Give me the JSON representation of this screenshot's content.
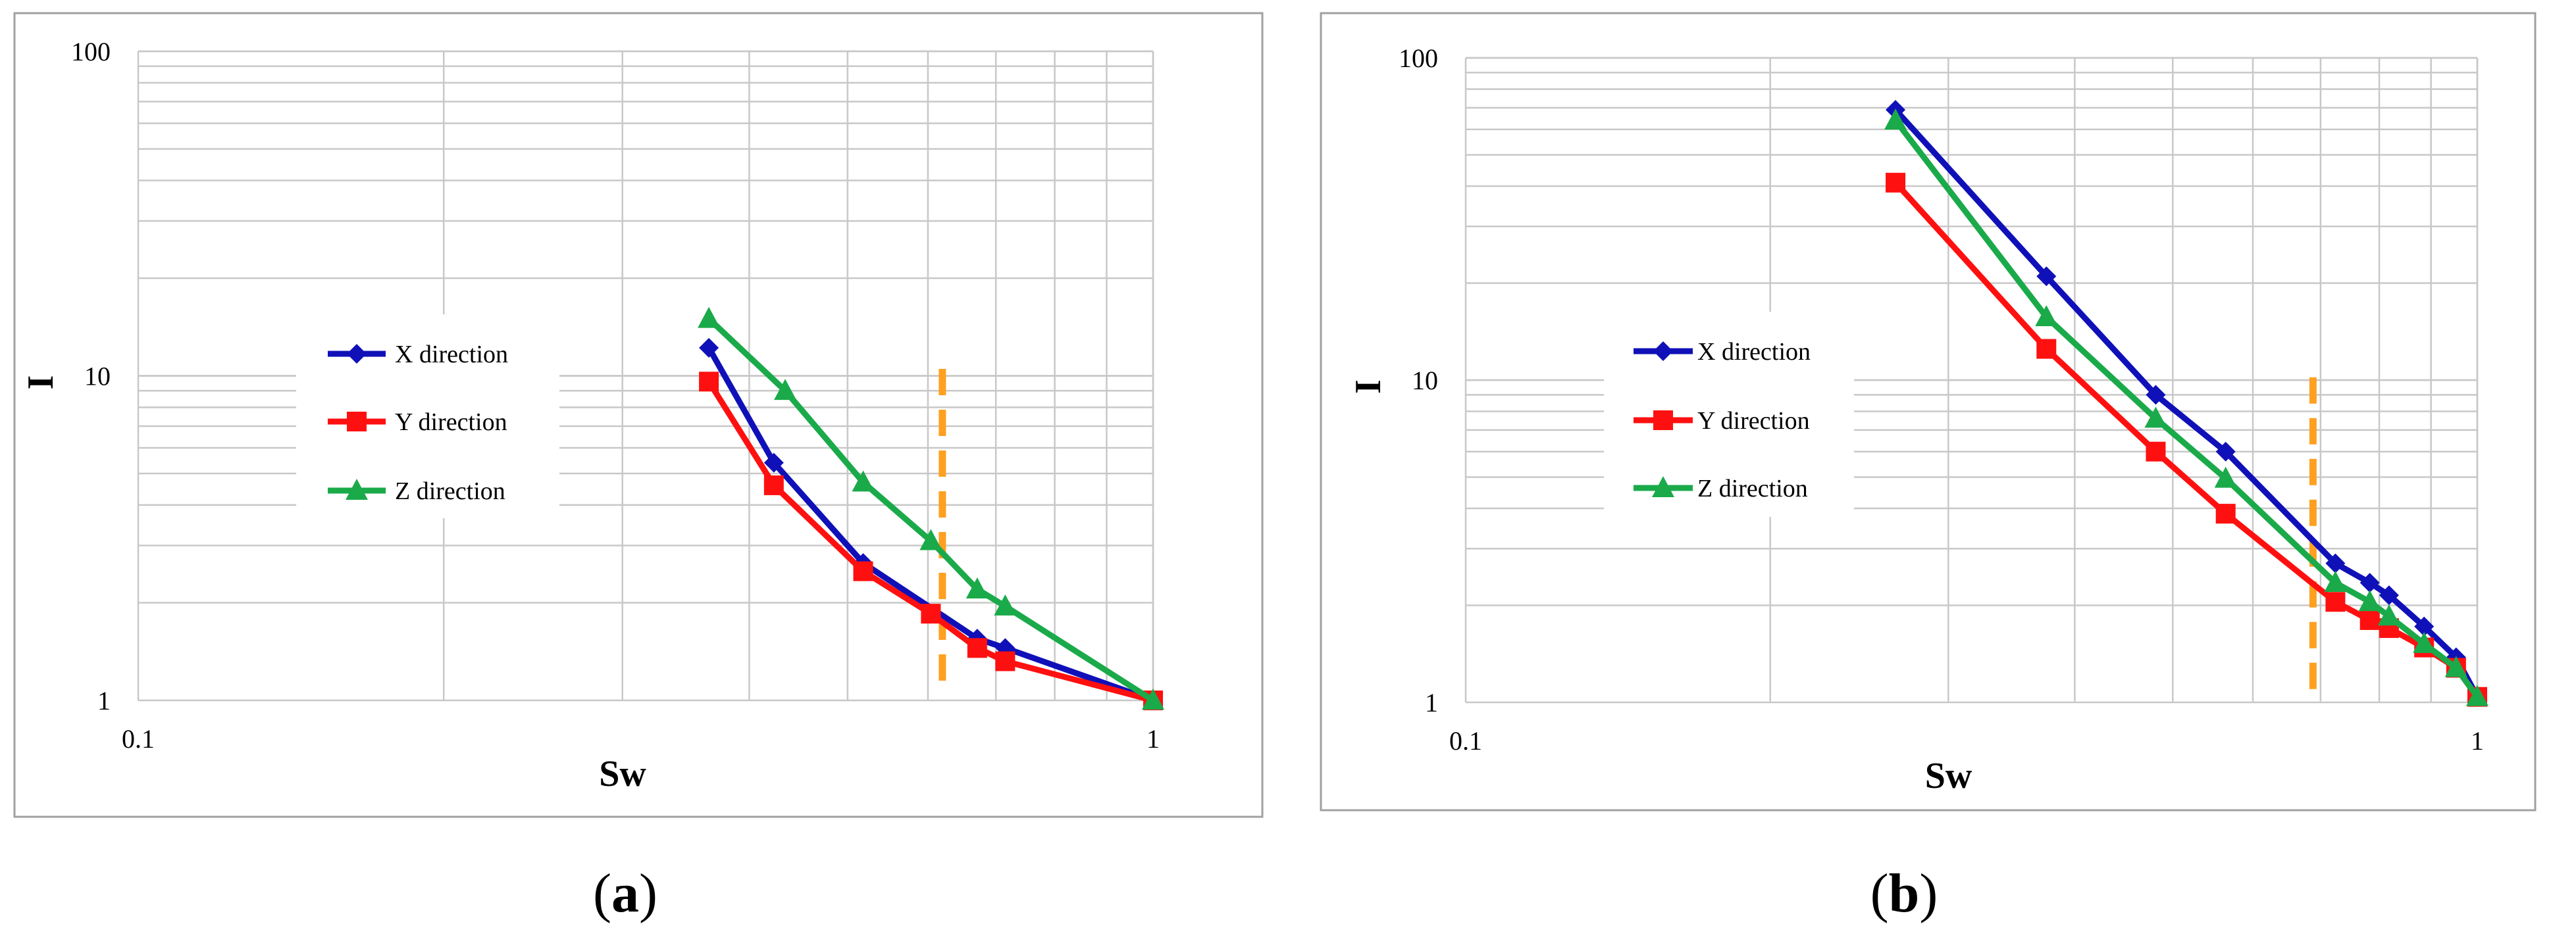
{
  "colors": {
    "x_series": "#1010b8",
    "y_series": "#ff1010",
    "z_series": "#1aaa4a",
    "cutoff_line": "#ffa020",
    "grid": "#c8c8c8",
    "frame": "#a0a0a0"
  },
  "chart_data": [
    {
      "panel_label": "a",
      "type": "line",
      "xscale": "log",
      "yscale": "log",
      "xlim": [
        0.1,
        1
      ],
      "ylim": [
        1,
        100
      ],
      "xlabel": "Sw",
      "ylabel": "I",
      "xticks": [
        "0.1",
        "1"
      ],
      "yticks": [
        "1",
        "10",
        "100"
      ],
      "grid": true,
      "legend_position": "center-left",
      "series": [
        {
          "name": "X direction",
          "marker": "diamond",
          "color": "#1010b8",
          "x": [
            0.365,
            0.423,
            0.518,
            0.671,
            0.715,
            1.0
          ],
          "y": [
            12.2,
            5.4,
            2.65,
            1.55,
            1.45,
            1.0
          ]
        },
        {
          "name": "Y direction",
          "marker": "square",
          "color": "#ff1010",
          "x": [
            0.365,
            0.423,
            0.518,
            0.604,
            0.671,
            0.715,
            1.0
          ],
          "y": [
            9.6,
            4.6,
            2.5,
            1.85,
            1.45,
            1.32,
            1.0
          ]
        },
        {
          "name": "Z direction",
          "marker": "triangle",
          "color": "#1aaa4a",
          "x": [
            0.365,
            0.434,
            0.518,
            0.604,
            0.671,
            0.715,
            1.0
          ],
          "y": [
            15.0,
            9.0,
            4.7,
            3.1,
            2.2,
            1.95,
            1.0
          ]
        }
      ],
      "vertical_line": {
        "x": 0.62,
        "y_range": [
          1.06,
          10.5
        ],
        "style": "dashed",
        "color": "#ffa020"
      }
    },
    {
      "panel_label": "b",
      "type": "line",
      "xscale": "log",
      "yscale": "log",
      "xlim": [
        0.1,
        1
      ],
      "ylim": [
        1,
        100
      ],
      "xlabel": "Sw",
      "ylabel": "I",
      "xticks": [
        "0.1",
        "1"
      ],
      "yticks": [
        "1",
        "10",
        "100"
      ],
      "grid": true,
      "legend_position": "center-left",
      "series": [
        {
          "name": "X direction",
          "marker": "diamond",
          "color": "#1010b8",
          "x": [
            0.266,
            0.375,
            0.481,
            0.564,
            0.724,
            0.783,
            0.818,
            0.886,
            0.953,
            1.0
          ],
          "y": [
            69.0,
            21.0,
            9.0,
            6.0,
            2.7,
            2.35,
            2.15,
            1.72,
            1.38,
            1.04
          ]
        },
        {
          "name": "Y direction",
          "marker": "square",
          "color": "#ff1010",
          "x": [
            0.266,
            0.375,
            0.481,
            0.564,
            0.724,
            0.783,
            0.818,
            0.886,
            0.953,
            1.0
          ],
          "y": [
            41.0,
            12.5,
            6.0,
            3.85,
            2.05,
            1.8,
            1.7,
            1.48,
            1.28,
            1.04
          ]
        },
        {
          "name": "Z direction",
          "marker": "triangle",
          "color": "#1aaa4a",
          "x": [
            0.266,
            0.375,
            0.481,
            0.564,
            0.724,
            0.783,
            0.818,
            0.886,
            0.953,
            1.0
          ],
          "y": [
            64.0,
            15.7,
            7.6,
            4.95,
            2.35,
            2.05,
            1.85,
            1.52,
            1.28,
            1.04
          ]
        }
      ],
      "vertical_line": {
        "x": 0.688,
        "y_range": [
          1.06,
          10.2
        ],
        "style": "dashed",
        "color": "#ffa020"
      }
    }
  ]
}
